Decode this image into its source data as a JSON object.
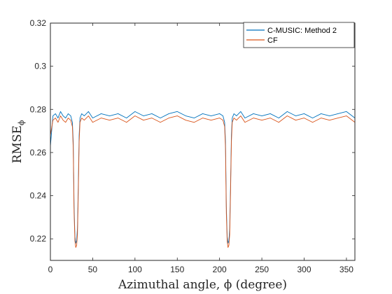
{
  "chart_data": {
    "type": "line",
    "xlabel": "Azimuthal angle, ϕ (degree)",
    "ylabel": "RMSE",
    "ylabel_subscript": "ϕ",
    "xlim": [
      0,
      360
    ],
    "ylim": [
      0.21,
      0.32
    ],
    "xticks": [
      0,
      50,
      100,
      150,
      200,
      250,
      300,
      350
    ],
    "yticks": [
      0.22,
      0.24,
      0.26,
      0.28,
      0.3,
      0.32
    ],
    "ytick_labels": [
      "0.22",
      "0.24",
      "0.26",
      "0.28",
      "0.3",
      "0.32"
    ],
    "grid": false,
    "legend_position": "top-right",
    "x": [
      0,
      3,
      6,
      9,
      12,
      15,
      18,
      21,
      24,
      26,
      27,
      28,
      29,
      30,
      31,
      32,
      33,
      34,
      35,
      37,
      40,
      45,
      50,
      60,
      70,
      80,
      90,
      100,
      110,
      120,
      130,
      140,
      150,
      160,
      170,
      180,
      190,
      200,
      204,
      206,
      207,
      208,
      209,
      210,
      211,
      212,
      213,
      214,
      215,
      217,
      220,
      225,
      230,
      240,
      250,
      260,
      270,
      280,
      290,
      300,
      310,
      320,
      330,
      340,
      350,
      360
    ],
    "series": [
      {
        "name": "C-MUSIC: Method 2",
        "color": "#0072BD",
        "values": [
          0.263,
          0.277,
          0.278,
          0.276,
          0.279,
          0.277,
          0.276,
          0.278,
          0.277,
          0.274,
          0.265,
          0.235,
          0.221,
          0.218,
          0.219,
          0.225,
          0.245,
          0.268,
          0.276,
          0.278,
          0.277,
          0.279,
          0.276,
          0.278,
          0.277,
          0.278,
          0.276,
          0.279,
          0.277,
          0.278,
          0.276,
          0.278,
          0.279,
          0.277,
          0.276,
          0.278,
          0.277,
          0.278,
          0.277,
          0.274,
          0.265,
          0.235,
          0.221,
          0.218,
          0.219,
          0.225,
          0.245,
          0.268,
          0.276,
          0.278,
          0.277,
          0.279,
          0.276,
          0.278,
          0.277,
          0.278,
          0.276,
          0.279,
          0.277,
          0.278,
          0.276,
          0.278,
          0.277,
          0.278,
          0.279,
          0.276
        ]
      },
      {
        "name": "CF",
        "color": "#D95319",
        "values": [
          0.268,
          0.275,
          0.276,
          0.274,
          0.277,
          0.275,
          0.274,
          0.276,
          0.275,
          0.272,
          0.262,
          0.232,
          0.219,
          0.216,
          0.217,
          0.222,
          0.242,
          0.265,
          0.274,
          0.276,
          0.275,
          0.277,
          0.274,
          0.276,
          0.275,
          0.276,
          0.274,
          0.277,
          0.275,
          0.276,
          0.274,
          0.276,
          0.277,
          0.275,
          0.274,
          0.276,
          0.275,
          0.276,
          0.275,
          0.272,
          0.262,
          0.232,
          0.219,
          0.216,
          0.217,
          0.222,
          0.242,
          0.265,
          0.274,
          0.276,
          0.275,
          0.277,
          0.274,
          0.276,
          0.275,
          0.276,
          0.274,
          0.277,
          0.275,
          0.276,
          0.274,
          0.276,
          0.275,
          0.276,
          0.277,
          0.274
        ]
      }
    ]
  }
}
